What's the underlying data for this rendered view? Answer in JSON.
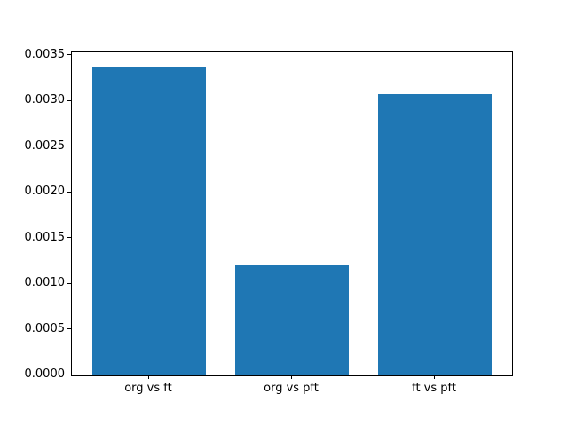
{
  "figure": {
    "background_color": "#ffffff",
    "title": ""
  },
  "chart_data": {
    "type": "bar",
    "title": "",
    "xlabel": "",
    "ylabel": "",
    "categories": [
      "org vs ft",
      "org vs pft",
      "ft vs pft"
    ],
    "values": [
      0.00337,
      0.00121,
      0.00308
    ],
    "ylim": [
      0,
      0.0035385
    ],
    "yticks": [
      0.0,
      0.0005,
      0.001,
      0.0015,
      0.002,
      0.0025,
      0.003,
      0.0035
    ],
    "ytick_labels": [
      "0.0000",
      "0.0005",
      "0.0010",
      "0.0015",
      "0.0020",
      "0.0025",
      "0.0030",
      "0.0035"
    ],
    "bar_color": "#1f77b4",
    "bar_width_ratio": 0.8,
    "grid": false,
    "legend_position": "none"
  }
}
